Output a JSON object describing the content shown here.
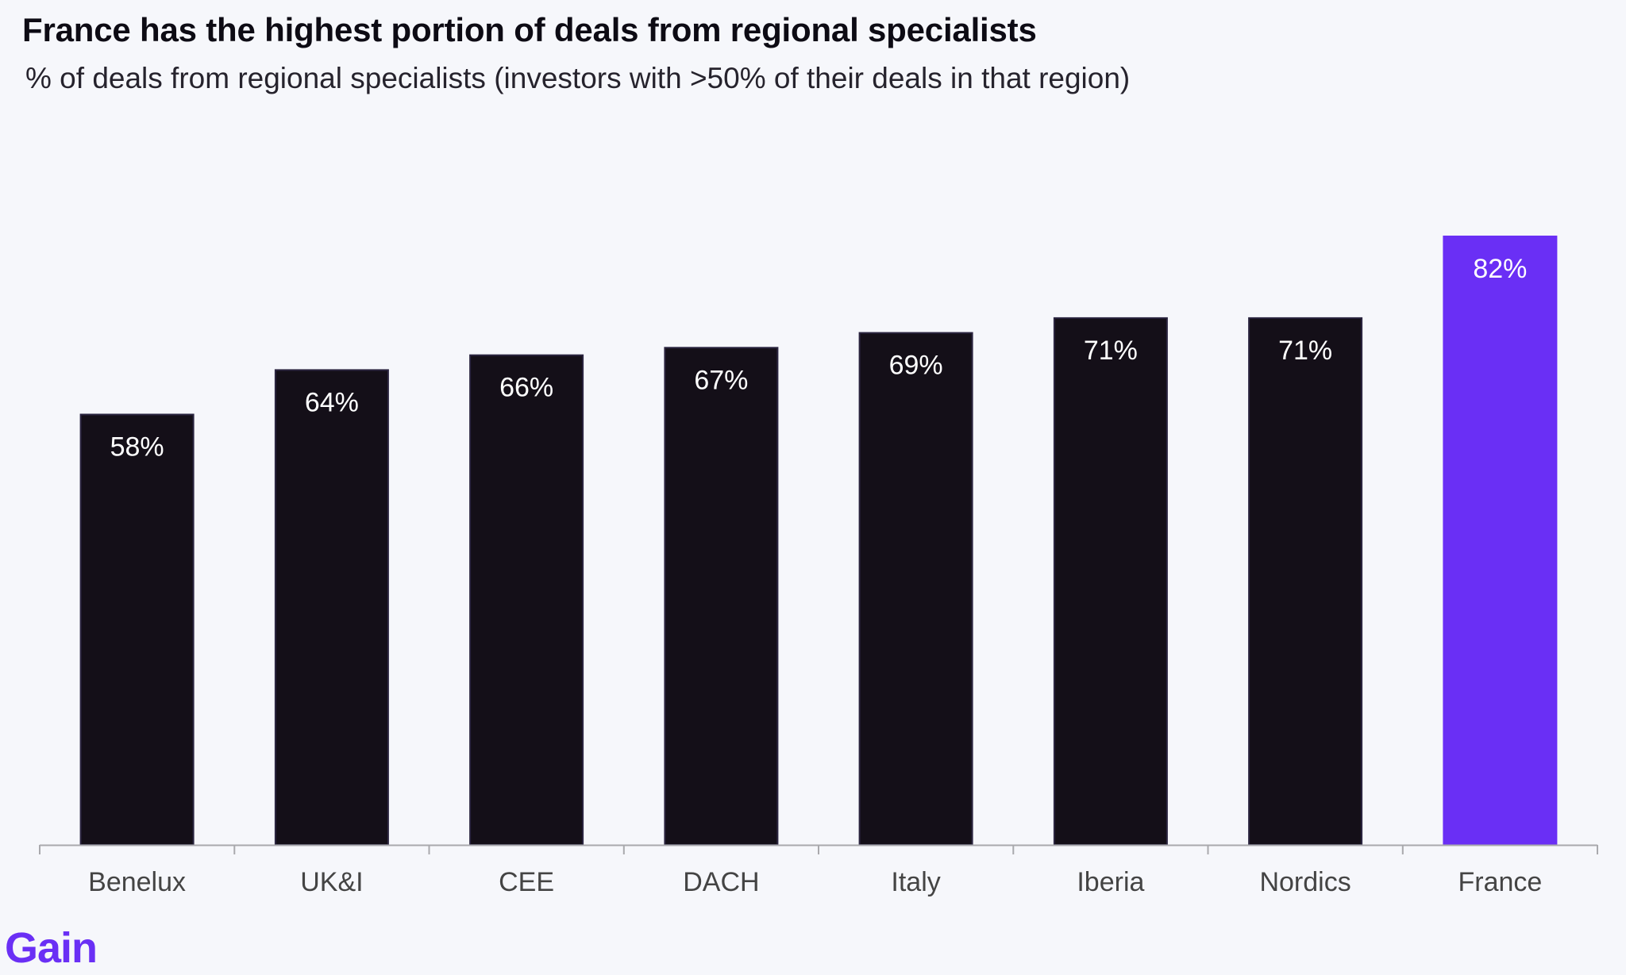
{
  "header": {
    "title": "France has the highest portion of deals from regional specialists",
    "subtitle": "% of deals from regional specialists (investors with >50% of their deals in that region)"
  },
  "brand": {
    "logo_text": "Gain",
    "logo_color": "#6a2ff5"
  },
  "colors": {
    "bar_default": "#140f18",
    "bar_highlight": "#6a2ff5",
    "label_text": "#ffffff",
    "axis": "#a9a9ad",
    "tick_label": "#444444"
  },
  "chart_data": {
    "type": "bar",
    "title": "France has the highest portion of deals from regional specialists",
    "subtitle": "% of deals from regional specialists (investors with >50% of their deals in that region)",
    "categories": [
      "Benelux",
      "UK&I",
      "CEE",
      "DACH",
      "Italy",
      "Iberia",
      "Nordics",
      "France"
    ],
    "values": [
      58,
      64,
      66,
      67,
      69,
      71,
      71,
      82
    ],
    "data_labels": [
      "58%",
      "64%",
      "66%",
      "67%",
      "69%",
      "71%",
      "71%",
      "82%"
    ],
    "highlight_category": "France",
    "xlabel": "",
    "ylabel": "",
    "ylim": [
      0,
      82
    ],
    "grid": false,
    "legend": "none"
  }
}
